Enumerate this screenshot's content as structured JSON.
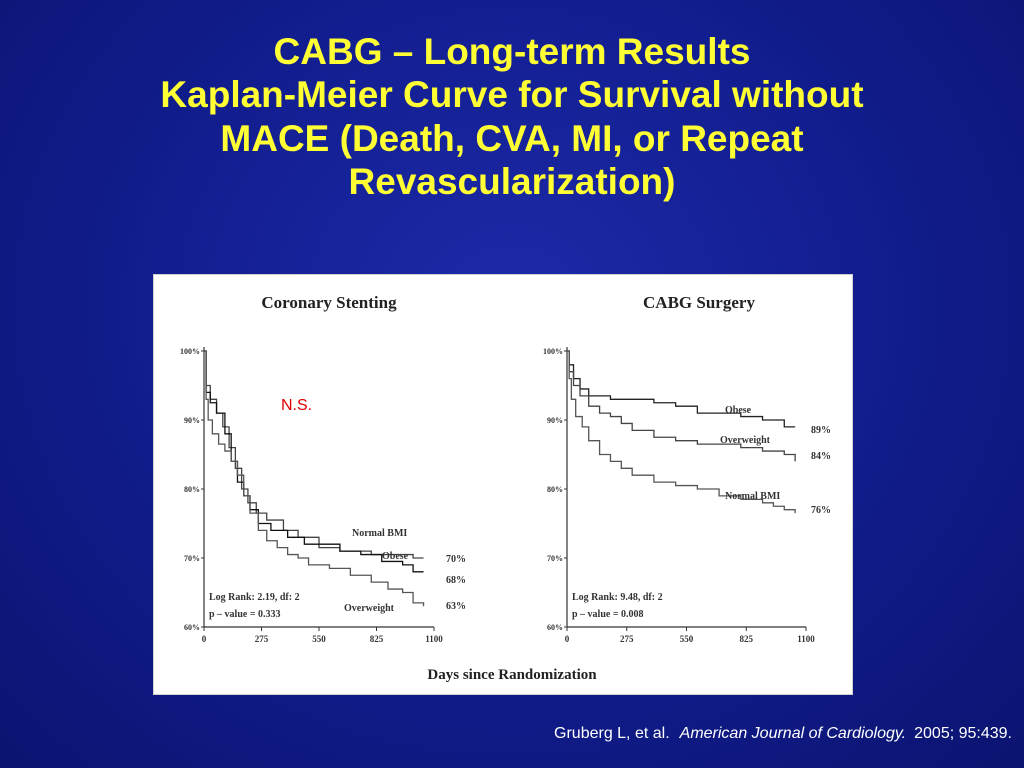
{
  "slide": {
    "title_lines": [
      "CABG – Long-term Results",
      "Kaplan-Meier Curve for Survival without",
      "MACE (Death, CVA, MI, or Repeat",
      "Revascularization)"
    ],
    "citation": {
      "authors": "Gruberg L, et al.",
      "journal": "American Journal of Cardiology.",
      "ref": "2005; 95:439."
    }
  },
  "figure": {
    "xlabel": "Days since Randomization",
    "annotation": "N.S.",
    "annotation_color": "#e00000"
  },
  "chart_data": [
    {
      "type": "line",
      "title": "Coronary Stenting",
      "x_ticks": [
        "0",
        "275",
        "550",
        "825",
        "1100"
      ],
      "y_ticks": [
        "100%",
        "90%",
        "80%",
        "70%",
        "60%"
      ],
      "xlim": [
        0,
        1100
      ],
      "ylim": [
        60,
        100
      ],
      "stats": [
        "Log Rank: 2.19, df: 2",
        "p – value = 0.333"
      ],
      "series": [
        {
          "name": "Normal BMI",
          "end_label": "70%",
          "color": "#444444",
          "points": [
            [
              0,
              100
            ],
            [
              10,
              95
            ],
            [
              30,
              93
            ],
            [
              60,
              91
            ],
            [
              90,
              89
            ],
            [
              120,
              86
            ],
            [
              150,
              83
            ],
            [
              180,
              80
            ],
            [
              210,
              78
            ],
            [
              250,
              76.5
            ],
            [
              300,
              75.5
            ],
            [
              380,
              74
            ],
            [
              450,
              73
            ],
            [
              550,
              71.5
            ],
            [
              650,
              71
            ],
            [
              720,
              71
            ],
            [
              800,
              70.5
            ],
            [
              900,
              70.5
            ],
            [
              1000,
              70
            ],
            [
              1050,
              70
            ]
          ]
        },
        {
          "name": "Obese",
          "end_label": "68%",
          "color": "#111111",
          "points": [
            [
              0,
              100
            ],
            [
              10,
              94
            ],
            [
              30,
              92.5
            ],
            [
              60,
              91
            ],
            [
              100,
              88
            ],
            [
              130,
              84
            ],
            [
              160,
              81
            ],
            [
              190,
              79
            ],
            [
              220,
              77
            ],
            [
              260,
              75
            ],
            [
              320,
              74
            ],
            [
              400,
              73
            ],
            [
              480,
              72
            ],
            [
              550,
              72
            ],
            [
              650,
              71
            ],
            [
              750,
              70.5
            ],
            [
              850,
              69.5
            ],
            [
              950,
              69
            ],
            [
              1000,
              68
            ],
            [
              1050,
              68
            ]
          ]
        },
        {
          "name": "Overweight",
          "end_label": "63%",
          "color": "#555555",
          "points": [
            [
              0,
              100
            ],
            [
              10,
              93
            ],
            [
              20,
              90
            ],
            [
              40,
              88
            ],
            [
              70,
              86.5
            ],
            [
              100,
              85.5
            ],
            [
              130,
              84
            ],
            [
              160,
              82
            ],
            [
              190,
              79
            ],
            [
              220,
              76.5
            ],
            [
              260,
              74
            ],
            [
              300,
              72.5
            ],
            [
              350,
              71.5
            ],
            [
              400,
              70.5
            ],
            [
              450,
              70
            ],
            [
              500,
              69
            ],
            [
              600,
              68.5
            ],
            [
              700,
              67.5
            ],
            [
              800,
              66.5
            ],
            [
              880,
              65.5
            ],
            [
              950,
              65
            ],
            [
              1000,
              63.5
            ],
            [
              1050,
              63
            ]
          ]
        }
      ]
    },
    {
      "type": "line",
      "title": "CABG Surgery",
      "x_ticks": [
        "0",
        "275",
        "550",
        "825",
        "1100"
      ],
      "y_ticks": [
        "100%",
        "90%",
        "80%",
        "70%",
        "60%"
      ],
      "xlim": [
        0,
        1100
      ],
      "ylim": [
        60,
        100
      ],
      "stats": [
        "Log Rank: 9.48, df: 2",
        "p – value = 0.008"
      ],
      "series": [
        {
          "name": "Obese",
          "end_label": "89%",
          "color": "#222222",
          "points": [
            [
              0,
              100
            ],
            [
              10,
              98
            ],
            [
              30,
              96
            ],
            [
              60,
              94.5
            ],
            [
              100,
              93.5
            ],
            [
              200,
              93
            ],
            [
              300,
              93
            ],
            [
              400,
              92.5
            ],
            [
              500,
              92
            ],
            [
              600,
              91
            ],
            [
              700,
              91
            ],
            [
              800,
              90.5
            ],
            [
              900,
              90
            ],
            [
              1000,
              89
            ],
            [
              1050,
              89
            ]
          ]
        },
        {
          "name": "Overweight",
          "end_label": "84%",
          "color": "#444444",
          "points": [
            [
              0,
              100
            ],
            [
              10,
              97
            ],
            [
              30,
              95
            ],
            [
              60,
              93.5
            ],
            [
              100,
              92
            ],
            [
              150,
              91
            ],
            [
              200,
              90.5
            ],
            [
              250,
              89.5
            ],
            [
              300,
              88.5
            ],
            [
              400,
              87.5
            ],
            [
              500,
              87
            ],
            [
              600,
              86.5
            ],
            [
              700,
              86.5
            ],
            [
              800,
              86
            ],
            [
              900,
              85.5
            ],
            [
              1000,
              85
            ],
            [
              1050,
              84
            ]
          ]
        },
        {
          "name": "Normal BMI",
          "end_label": "76%",
          "color": "#555555",
          "points": [
            [
              0,
              100
            ],
            [
              10,
              96
            ],
            [
              20,
              93
            ],
            [
              40,
              90.5
            ],
            [
              70,
              89
            ],
            [
              100,
              87
            ],
            [
              150,
              85
            ],
            [
              200,
              84
            ],
            [
              250,
              83
            ],
            [
              300,
              82
            ],
            [
              400,
              81
            ],
            [
              500,
              80.5
            ],
            [
              600,
              80
            ],
            [
              700,
              79
            ],
            [
              800,
              78.5
            ],
            [
              900,
              78
            ],
            [
              950,
              77.5
            ],
            [
              1000,
              77
            ],
            [
              1050,
              76.5
            ]
          ]
        }
      ]
    }
  ]
}
